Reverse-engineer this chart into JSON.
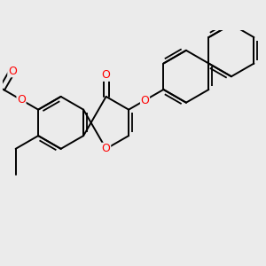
{
  "bg_color": "#ebebeb",
  "bond_color": "#000000",
  "oxygen_color": "#ff0000",
  "lw": 1.4,
  "lw_db": 1.3,
  "fs": 8.5,
  "figsize": [
    3.0,
    3.0
  ],
  "dpi": 100,
  "xlim": [
    -1.3,
    2.5
  ],
  "ylim": [
    -1.6,
    1.4
  ]
}
